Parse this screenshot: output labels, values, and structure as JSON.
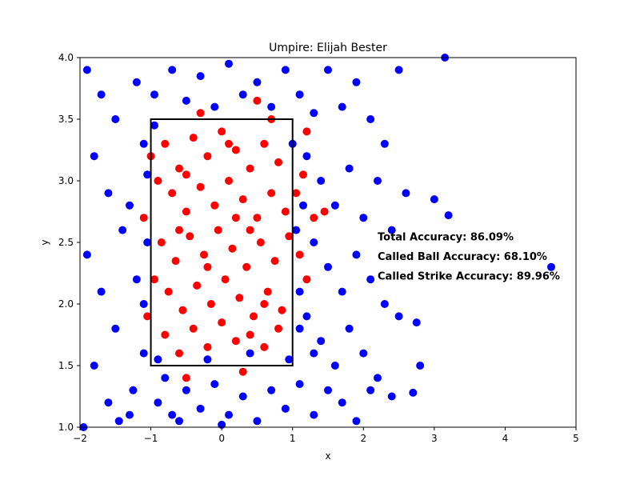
{
  "chart_data": {
    "type": "scatter",
    "title": "Umpire: Elijah Bester",
    "xlabel": "x",
    "ylabel": "y",
    "xlim": [
      -2,
      5
    ],
    "ylim": [
      1.0,
      4.0
    ],
    "xticks": [
      "−2",
      "−1",
      "0",
      "1",
      "2",
      "3",
      "4",
      "5"
    ],
    "yticks": [
      "1.0",
      "1.5",
      "2.0",
      "2.5",
      "3.0",
      "3.5",
      "4.0"
    ],
    "grid": false,
    "strike_zone": {
      "x": [
        -1,
        1
      ],
      "y": [
        1.5,
        3.5
      ]
    },
    "series": [
      {
        "color": "#0000ff",
        "points": [
          [
            -1.9,
            3.9
          ],
          [
            -1.7,
            3.7
          ],
          [
            -1.5,
            3.5
          ],
          [
            -1.8,
            3.2
          ],
          [
            -1.6,
            2.9
          ],
          [
            -1.4,
            2.6
          ],
          [
            -1.9,
            2.4
          ],
          [
            -1.7,
            2.1
          ],
          [
            -1.5,
            1.8
          ],
          [
            -1.8,
            1.5
          ],
          [
            -1.6,
            1.2
          ],
          [
            -1.3,
            1.1
          ],
          [
            -1.2,
            3.8
          ],
          [
            -1.1,
            3.3
          ],
          [
            -1.3,
            2.8
          ],
          [
            -1.2,
            2.2
          ],
          [
            -1.1,
            1.6
          ],
          [
            -1.25,
            1.3
          ],
          [
            -0.9,
            1.2
          ],
          [
            -0.8,
            1.4
          ],
          [
            -0.7,
            1.1
          ],
          [
            -0.5,
            1.3
          ],
          [
            -0.3,
            1.15
          ],
          [
            -0.1,
            1.35
          ],
          [
            0.1,
            1.1
          ],
          [
            0.3,
            1.25
          ],
          [
            0.5,
            1.05
          ],
          [
            0.7,
            1.3
          ],
          [
            0.9,
            1.15
          ],
          [
            1.1,
            1.35
          ],
          [
            1.3,
            1.1
          ],
          [
            -0.95,
            3.7
          ],
          [
            -0.7,
            3.9
          ],
          [
            -0.5,
            3.65
          ],
          [
            -0.3,
            3.85
          ],
          [
            -0.1,
            3.6
          ],
          [
            0.1,
            3.95
          ],
          [
            0.3,
            3.7
          ],
          [
            0.5,
            3.8
          ],
          [
            0.7,
            3.6
          ],
          [
            0.9,
            3.9
          ],
          [
            1.1,
            3.7
          ],
          [
            1.3,
            3.55
          ],
          [
            1.5,
            3.9
          ],
          [
            1.7,
            3.6
          ],
          [
            1.9,
            3.8
          ],
          [
            2.1,
            3.5
          ],
          [
            2.3,
            3.3
          ],
          [
            2.5,
            3.9
          ],
          [
            1.2,
            3.2
          ],
          [
            1.4,
            3.0
          ],
          [
            1.6,
            2.8
          ],
          [
            1.8,
            3.1
          ],
          [
            2.0,
            2.7
          ],
          [
            2.2,
            3.0
          ],
          [
            2.4,
            2.6
          ],
          [
            2.6,
            2.9
          ],
          [
            1.3,
            2.5
          ],
          [
            1.5,
            2.3
          ],
          [
            1.7,
            2.1
          ],
          [
            1.9,
            2.4
          ],
          [
            2.1,
            2.2
          ],
          [
            2.3,
            2.0
          ],
          [
            2.5,
            1.9
          ],
          [
            1.2,
            1.9
          ],
          [
            1.4,
            1.7
          ],
          [
            1.6,
            1.5
          ],
          [
            1.8,
            1.8
          ],
          [
            2.0,
            1.6
          ],
          [
            2.2,
            1.4
          ],
          [
            1.3,
            1.6
          ],
          [
            1.5,
            1.3
          ],
          [
            1.7,
            1.2
          ],
          [
            1.9,
            1.05
          ],
          [
            2.1,
            1.3
          ],
          [
            1.1,
            2.1
          ],
          [
            1.15,
            2.8
          ],
          [
            1.1,
            1.8
          ],
          [
            2.8,
            1.5
          ],
          [
            2.75,
            1.85
          ],
          [
            3.0,
            2.85
          ],
          [
            3.2,
            2.72
          ],
          [
            3.15,
            4.0
          ],
          [
            2.4,
            1.25
          ],
          [
            2.7,
            1.28
          ],
          [
            4.65,
            2.3
          ],
          [
            -1.95,
            1.0
          ],
          [
            -1.45,
            1.05
          ],
          [
            -0.6,
            1.05
          ],
          [
            0.0,
            1.02
          ],
          [
            -1.05,
            2.5
          ],
          [
            -1.1,
            2.0
          ],
          [
            -1.05,
            3.05
          ],
          [
            -0.95,
            3.45
          ],
          [
            -0.9,
            1.55
          ],
          [
            0.95,
            1.55
          ],
          [
            1.05,
            2.6
          ],
          [
            1.0,
            3.3
          ],
          [
            -0.2,
            1.55
          ],
          [
            0.4,
            1.6
          ]
        ]
      },
      {
        "color": "#ff0000",
        "points": [
          [
            -0.8,
            3.3
          ],
          [
            -0.6,
            3.1
          ],
          [
            -0.4,
            3.35
          ],
          [
            -0.2,
            3.2
          ],
          [
            0.0,
            3.4
          ],
          [
            0.2,
            3.25
          ],
          [
            0.4,
            3.1
          ],
          [
            0.6,
            3.3
          ],
          [
            0.8,
            3.15
          ],
          [
            -0.7,
            2.9
          ],
          [
            -0.5,
            2.75
          ],
          [
            -0.3,
            2.95
          ],
          [
            -0.1,
            2.8
          ],
          [
            0.1,
            3.0
          ],
          [
            0.3,
            2.85
          ],
          [
            0.5,
            2.7
          ],
          [
            0.7,
            2.9
          ],
          [
            0.9,
            2.75
          ],
          [
            -0.85,
            2.5
          ],
          [
            -0.65,
            2.35
          ],
          [
            -0.45,
            2.55
          ],
          [
            -0.25,
            2.4
          ],
          [
            -0.05,
            2.6
          ],
          [
            0.15,
            2.45
          ],
          [
            0.35,
            2.3
          ],
          [
            0.55,
            2.5
          ],
          [
            0.75,
            2.35
          ],
          [
            0.95,
            2.55
          ],
          [
            -0.75,
            2.1
          ],
          [
            -0.55,
            1.95
          ],
          [
            -0.35,
            2.15
          ],
          [
            -0.15,
            2.0
          ],
          [
            0.05,
            2.2
          ],
          [
            0.25,
            2.05
          ],
          [
            0.45,
            1.9
          ],
          [
            0.65,
            2.1
          ],
          [
            0.85,
            1.95
          ],
          [
            -0.8,
            1.75
          ],
          [
            -0.6,
            1.6
          ],
          [
            -0.4,
            1.8
          ],
          [
            -0.2,
            1.65
          ],
          [
            0.0,
            1.85
          ],
          [
            0.2,
            1.7
          ],
          [
            0.4,
            1.75
          ],
          [
            0.6,
            1.65
          ],
          [
            0.8,
            1.8
          ],
          [
            -0.9,
            3.0
          ],
          [
            -0.95,
            2.2
          ],
          [
            1.05,
            2.9
          ],
          [
            1.1,
            2.4
          ],
          [
            1.2,
            2.2
          ],
          [
            1.15,
            3.05
          ],
          [
            -1.1,
            2.7
          ],
          [
            -1.05,
            1.9
          ],
          [
            -0.5,
            1.4
          ],
          [
            0.3,
            1.45
          ],
          [
            -0.3,
            3.55
          ],
          [
            0.5,
            3.65
          ],
          [
            0.1,
            3.3
          ],
          [
            -0.6,
            2.6
          ],
          [
            0.2,
            2.7
          ],
          [
            0.6,
            2.0
          ],
          [
            -0.2,
            2.3
          ],
          [
            0.4,
            2.6
          ],
          [
            -0.5,
            3.05
          ],
          [
            0.7,
            3.5
          ],
          [
            1.3,
            2.7
          ],
          [
            1.45,
            2.75
          ],
          [
            1.2,
            3.4
          ],
          [
            -1.0,
            3.2
          ]
        ]
      }
    ],
    "annotations": [
      {
        "text": "Total Accuracy: 86.09%",
        "x": 2.2,
        "y": 2.55
      },
      {
        "text": "Called Ball Accuracy: 68.10%",
        "x": 2.2,
        "y": 2.39
      },
      {
        "text": "Called Strike Accuracy: 89.96%",
        "x": 2.2,
        "y": 2.23
      }
    ]
  }
}
